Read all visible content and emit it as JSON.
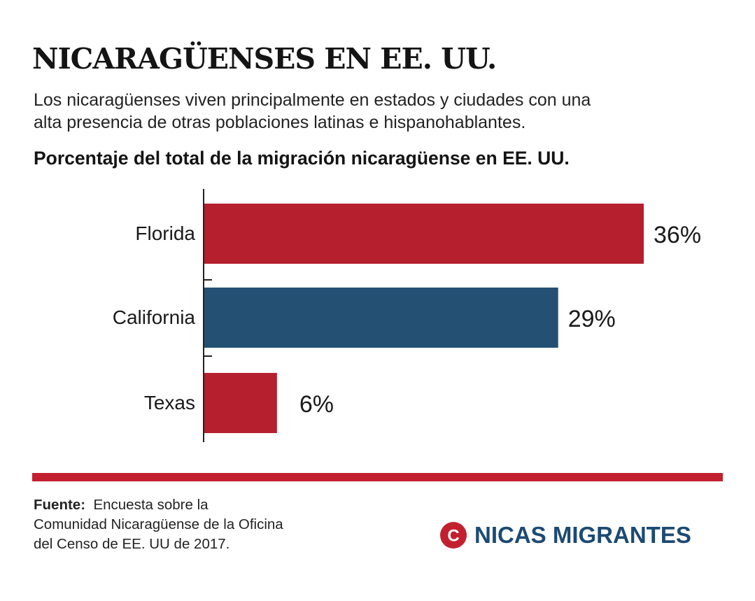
{
  "header": {
    "title": "NICARAGÜENSES EN EE. UU.",
    "subtitle_line1": "Los nicaragüenses viven principalmente en estados y ciudades con una",
    "subtitle_line2": "alta presencia de otras poblaciones latinas e hispanohablantes."
  },
  "chart_data": {
    "type": "bar",
    "orientation": "horizontal",
    "title": "Porcentaje del total de la migración nicaragüense en EE. UU.",
    "categories": [
      "Florida",
      "California",
      "Texas"
    ],
    "values": [
      36,
      29,
      6
    ],
    "value_labels": [
      "36%",
      "29%",
      "6%"
    ],
    "unit": "%",
    "bar_colors": [
      "#b51f2e",
      "#245073",
      "#b51f2e"
    ],
    "xlim": [
      0,
      36
    ],
    "grid": false,
    "legend": "none"
  },
  "footer": {
    "rule_color": "#c3202f",
    "source_label": "Fuente:",
    "source_line1": "Encuesta sobre la",
    "source_line2": "Comunidad Nicaragüense de la Oficina",
    "source_line3": "del Censo de EE. UU de 2017.",
    "brand_name": "NICAS MIGRANTES",
    "brand_color": "#1c4a73",
    "brand_logo_icon": "red-circle-c-logo",
    "brand_logo_color": "#c3202f",
    "brand_logo_letter": "C"
  }
}
